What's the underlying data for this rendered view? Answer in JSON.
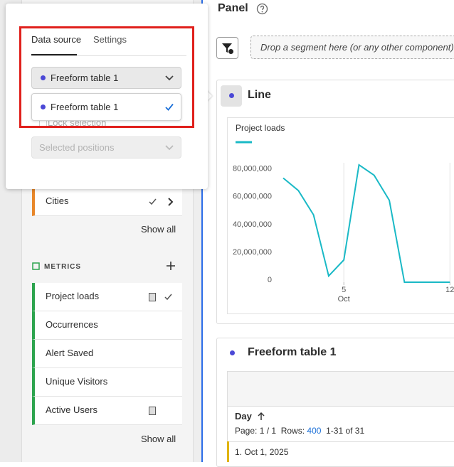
{
  "popover": {
    "tabs": [
      "Data source",
      "Settings"
    ],
    "selected": "Freeform table 1",
    "options": [
      "Freeform table 1"
    ],
    "lock_label": "Lock selection",
    "positions_placeholder": "Selected positions"
  },
  "dimensions": {
    "items": [
      "Cities"
    ],
    "show_all": "Show all"
  },
  "metrics": {
    "title": "METRICS",
    "items": [
      "Project loads",
      "Occurrences",
      "Alert Saved",
      "Unique Visitors",
      "Active Users"
    ],
    "show_all": "Show all"
  },
  "panel": {
    "title": "Panel",
    "drop_zone": "Drop a segment here (or any other component)"
  },
  "line_card": {
    "title": "Line"
  },
  "chart_data": {
    "type": "line",
    "x": [
      1,
      2,
      3,
      4,
      5,
      6,
      7,
      8,
      9,
      10,
      11,
      12
    ],
    "series": [
      {
        "name": "Project loads",
        "color": "#1ab9c6",
        "values": [
          75000000,
          66000000,
          48500000,
          4500000,
          16000000,
          84500000,
          77000000,
          59000000,
          0,
          0,
          0,
          0
        ]
      }
    ],
    "xlim": [
      0.53,
      12.27
    ],
    "xticks": [
      5,
      12
    ],
    "x_month_label": "Oct",
    "ylim": [
      0,
      86000000
    ],
    "yticks": [
      0,
      {
        "value": 20000000,
        "label": "20,000,000"
      },
      {
        "value": 40000000,
        "label": "40,000,000"
      },
      {
        "value": 60000000,
        "label": "60,000,000"
      },
      {
        "value": 80000000,
        "label": "80,000,000"
      }
    ],
    "grid": "x"
  },
  "table_card": {
    "title": "Freeform table 1",
    "column": "Day",
    "page_label": "Page: 1 / 1",
    "rows_label": "Rows:",
    "rows_value": 400,
    "range": "1-31 of 31",
    "rows": [
      {
        "index": "1.",
        "label": "Oct 1, 2025"
      }
    ]
  }
}
